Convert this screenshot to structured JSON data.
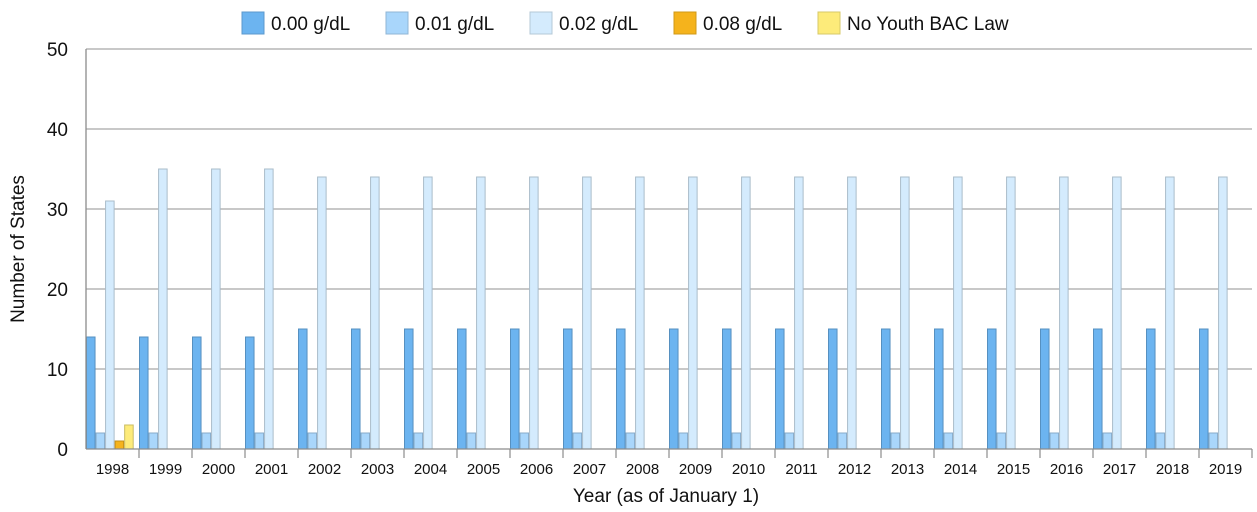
{
  "chart_data": {
    "type": "bar",
    "xlabel": "Year (as of January 1)",
    "ylabel": "Number of States",
    "ylim": [
      0,
      50
    ],
    "yticks": [
      0,
      10,
      20,
      30,
      40,
      50
    ],
    "grid": true,
    "legend_position": "top",
    "categories": [
      "1998",
      "1999",
      "2000",
      "2001",
      "2002",
      "2003",
      "2004",
      "2005",
      "2006",
      "2007",
      "2008",
      "2009",
      "2010",
      "2011",
      "2012",
      "2013",
      "2014",
      "2015",
      "2016",
      "2017",
      "2018",
      "2019"
    ],
    "series": [
      {
        "name": "0.00 g/dL",
        "color": "#6cb4f0",
        "values": [
          14,
          14,
          14,
          14,
          15,
          15,
          15,
          15,
          15,
          15,
          15,
          15,
          15,
          15,
          15,
          15,
          15,
          15,
          15,
          15,
          15,
          15
        ]
      },
      {
        "name": "0.01 g/dL",
        "color": "#a9d6fb",
        "values": [
          2,
          2,
          2,
          2,
          2,
          2,
          2,
          2,
          2,
          2,
          2,
          2,
          2,
          2,
          2,
          2,
          2,
          2,
          2,
          2,
          2,
          2
        ]
      },
      {
        "name": "0.02 g/dL",
        "color": "#d4ebfd",
        "values": [
          31,
          35,
          35,
          35,
          34,
          34,
          34,
          34,
          34,
          34,
          34,
          34,
          34,
          34,
          34,
          34,
          34,
          34,
          34,
          34,
          34,
          34
        ]
      },
      {
        "name": "0.08 g/dL",
        "color": "#f5b31c",
        "values": [
          1,
          0,
          0,
          0,
          0,
          0,
          0,
          0,
          0,
          0,
          0,
          0,
          0,
          0,
          0,
          0,
          0,
          0,
          0,
          0,
          0,
          0
        ]
      },
      {
        "name": "No Youth BAC Law",
        "color": "#fdeb7a",
        "values": [
          3,
          0,
          0,
          0,
          0,
          0,
          0,
          0,
          0,
          0,
          0,
          0,
          0,
          0,
          0,
          0,
          0,
          0,
          0,
          0,
          0,
          0
        ]
      }
    ]
  }
}
